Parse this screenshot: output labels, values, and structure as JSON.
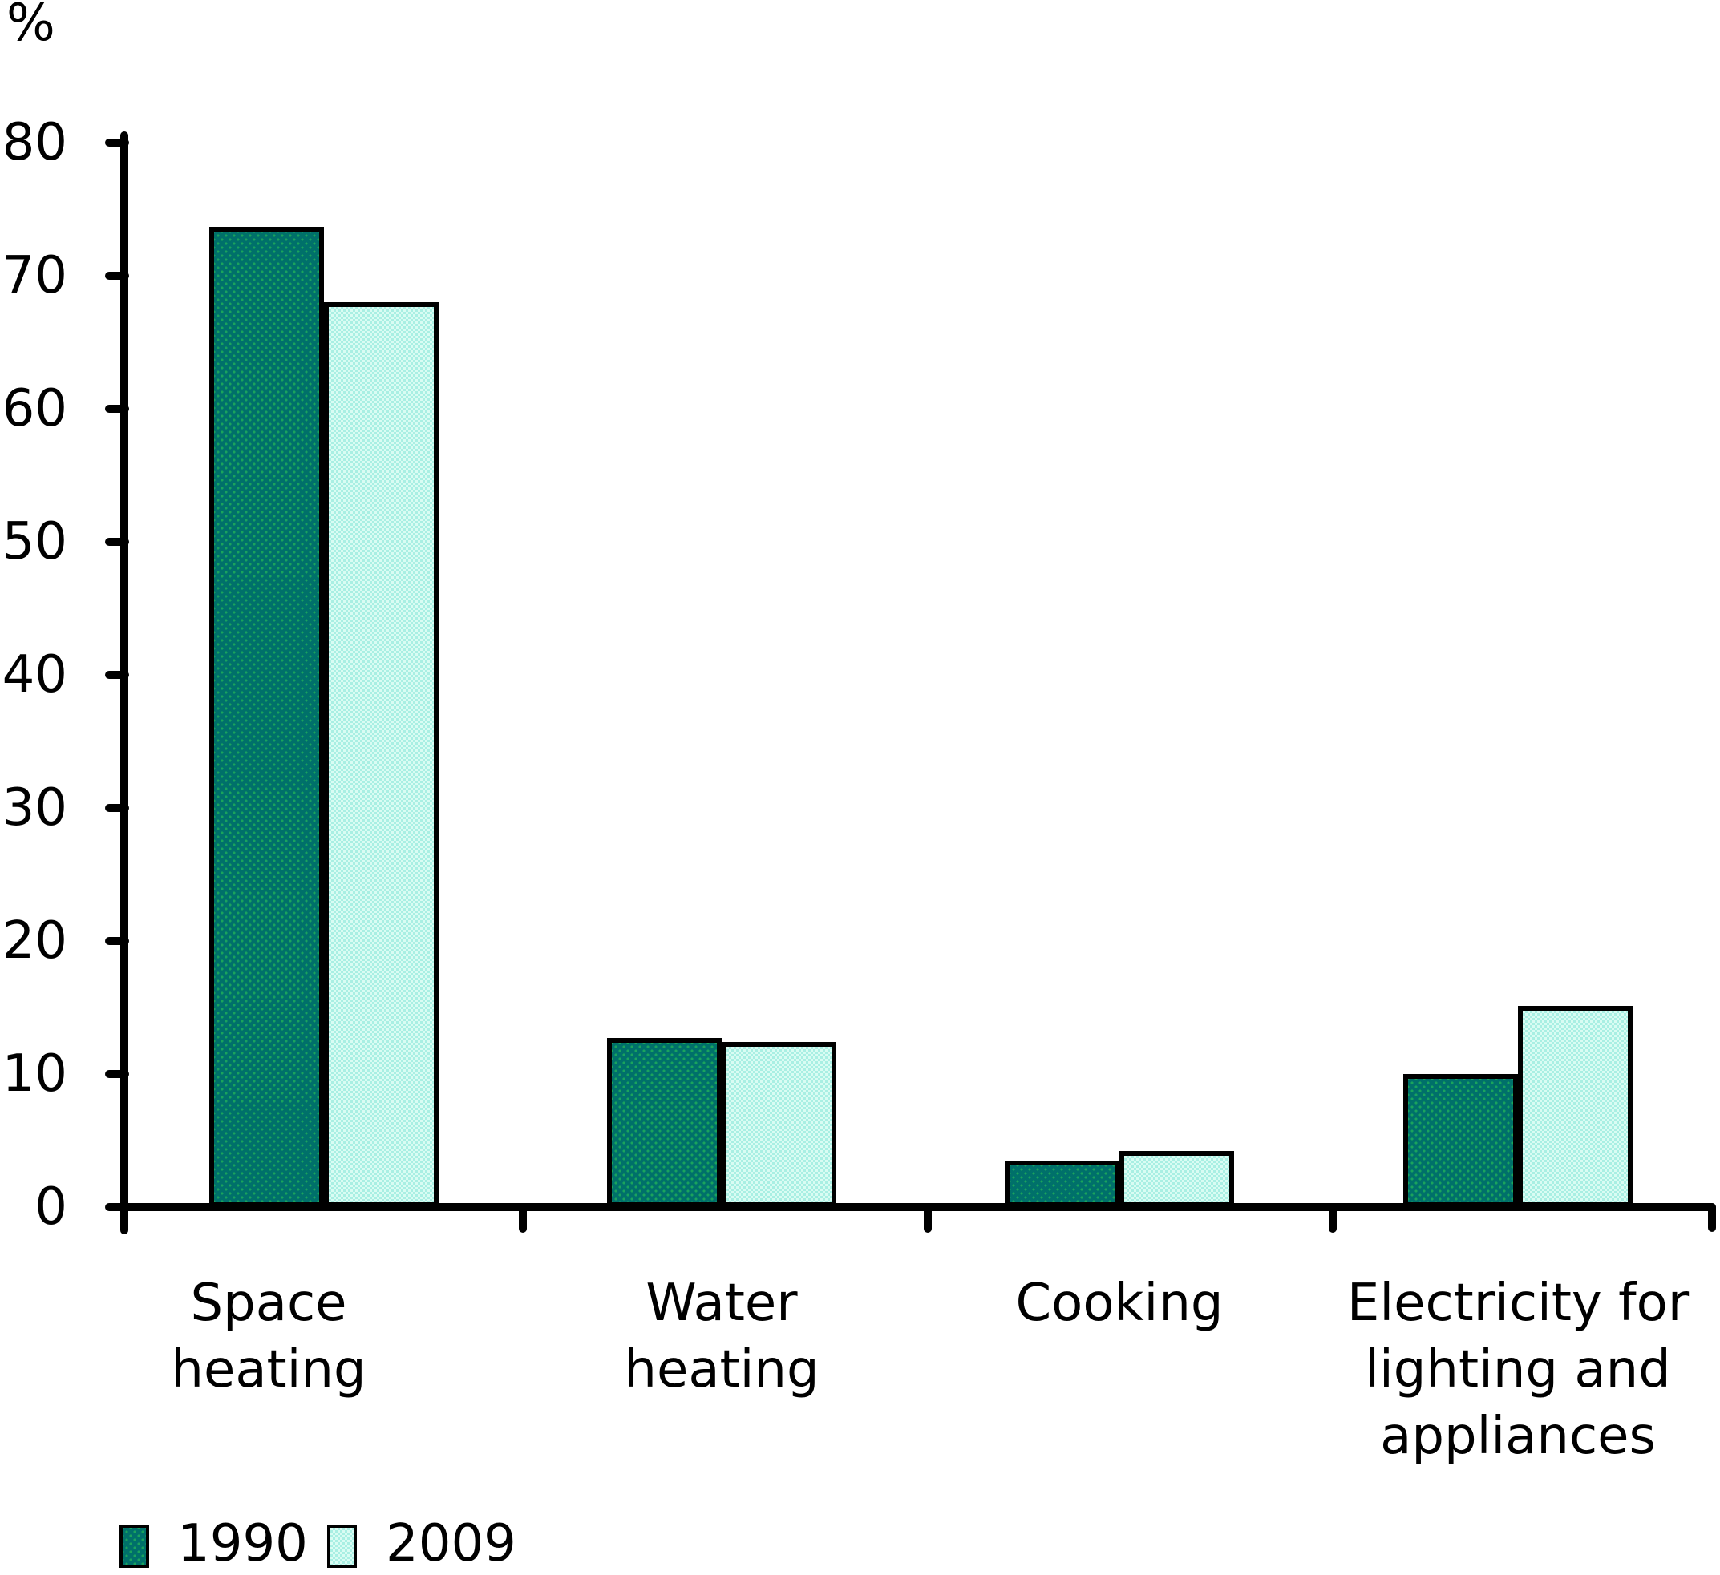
{
  "chart_data": {
    "type": "bar",
    "title": "",
    "percent_label": "%",
    "categories": [
      "Space heating",
      "Water heating",
      "Cooking",
      "Electricity for lighting and appliances"
    ],
    "category_label_lines": [
      [
        "Space",
        "heating"
      ],
      [
        "Water",
        "heating"
      ],
      [
        "Cooking"
      ],
      [
        "Electricity for",
        "lighting and",
        "appliances"
      ]
    ],
    "series": [
      {
        "name": "1990",
        "values": [
          73.7,
          12.7,
          3.5,
          10.0
        ],
        "color": "#00706a",
        "pattern_color": "#1aa45c",
        "pattern": "dots"
      },
      {
        "name": "2009",
        "values": [
          68.0,
          12.4,
          4.2,
          15.1
        ],
        "color": "#d9fcf3",
        "pattern_color": "#a9efe3",
        "pattern": "checker"
      }
    ],
    "ylabel": "%",
    "xlabel": "",
    "ylim": [
      0,
      80
    ],
    "yticks": [
      0,
      10,
      20,
      30,
      40,
      50,
      60,
      70,
      80
    ],
    "grid": false,
    "legend_position": "bottom-left",
    "axis_color": "#000000",
    "text_color": "#000000",
    "background": "#ffffff"
  }
}
